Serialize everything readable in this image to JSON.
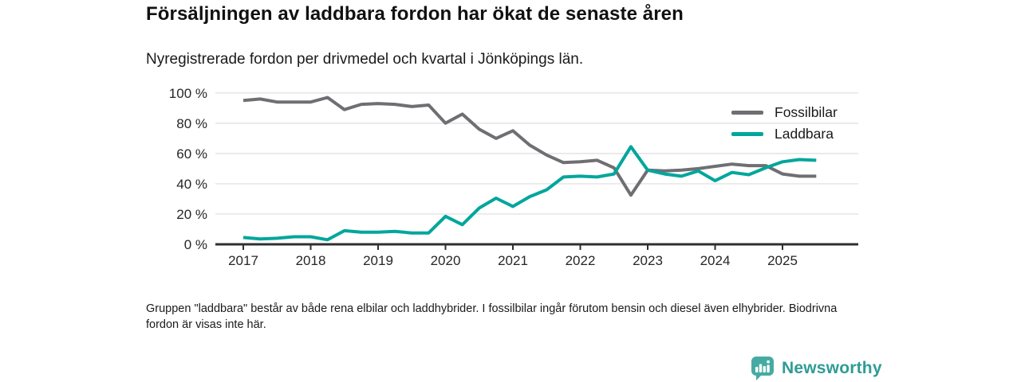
{
  "header": {
    "title": "Försäljningen av laddbara fordon har ökat de senaste åren",
    "subtitle": "Nyregistrerade fordon per drivmedel och kvartal i Jönköpings län."
  },
  "chart_data": {
    "type": "line",
    "x_description": "Quarterly points from 2017 Q1 to 2025 Q3",
    "x_start": "2017 Q1",
    "x_end": "2025 Q3",
    "points_per_year": 4,
    "x_tick_labels": [
      "2017",
      "2018",
      "2019",
      "2020",
      "2021",
      "2022",
      "2023",
      "2024",
      "2025"
    ],
    "y_tick_labels": [
      "0 %",
      "20 %",
      "40 %",
      "60 %",
      "80 %",
      "100 %"
    ],
    "y_ticks": [
      0,
      20,
      40,
      60,
      80,
      100
    ],
    "ylim": [
      0,
      100
    ],
    "grid": true,
    "legend_position": "top-right",
    "series": [
      {
        "name": "Fossilbilar",
        "color": "#6f6f73",
        "values": [
          95,
          96,
          94,
          94,
          94,
          97,
          89,
          92.5,
          93,
          92.5,
          91,
          92,
          80,
          86,
          76,
          70,
          75,
          65.5,
          59,
          54,
          54.5,
          55.5,
          50.5,
          32.5,
          49,
          48.5,
          49,
          50,
          51.5,
          53,
          52,
          52,
          46.5,
          45,
          45
        ]
      },
      {
        "name": "Laddbara",
        "color": "#00a69c",
        "values": [
          4.5,
          3.5,
          4,
          5,
          5,
          3,
          9,
          8,
          8,
          8.5,
          7.5,
          7.5,
          18.5,
          13,
          24,
          30.5,
          25,
          31.5,
          36,
          44.5,
          45,
          44.5,
          46.5,
          64.5,
          49,
          46.5,
          45,
          48.5,
          42,
          47.5,
          46,
          50.5,
          54.5,
          56,
          55.5
        ]
      }
    ],
    "colors": {
      "gridline": "#dedede",
      "axis": "#2f2f2f",
      "tick_label": "#262626"
    }
  },
  "footnote": {
    "text": "Gruppen \"laddbara\" består av både rena elbilar och laddhybrider. I fossilbilar ingår förutom bensin och diesel även elhybrider. Biodrivna fordon är visas inte här."
  },
  "branding": {
    "logo_text": "Newsworthy",
    "logo_icon": "bar-chart-speech-bubble-icon",
    "icon_color": "#45aba2",
    "text_color": "#2e9c94"
  }
}
